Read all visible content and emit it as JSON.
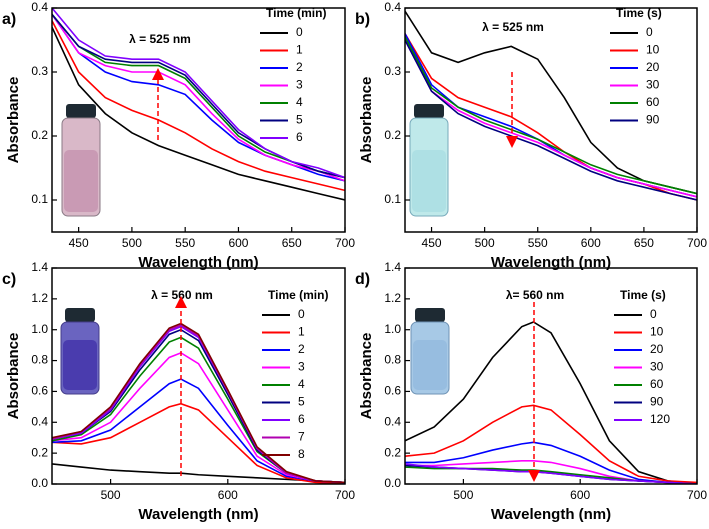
{
  "chart_data": [
    {
      "type": "line",
      "panel": "a)",
      "annotation": "λ = 525 nm",
      "x_label": "Wavelength (nm)",
      "y_label": "Absorbance",
      "legend_title": "Time (min)",
      "xlim": [
        425,
        700
      ],
      "xticks": [
        450,
        500,
        550,
        600,
        650,
        700
      ],
      "ylim": [
        0.05,
        0.4
      ],
      "yticks": [
        0.1,
        0.2,
        0.3,
        0.4
      ],
      "x": [
        425,
        450,
        475,
        500,
        525,
        550,
        575,
        600,
        625,
        650,
        675,
        700
      ],
      "series": [
        {
          "name": "0",
          "color": "#000000",
          "values": [
            0.37,
            0.28,
            0.235,
            0.205,
            0.185,
            0.17,
            0.155,
            0.14,
            0.13,
            0.12,
            0.11,
            0.1
          ]
        },
        {
          "name": "1",
          "color": "#ff0000",
          "values": [
            0.38,
            0.3,
            0.26,
            0.24,
            0.225,
            0.205,
            0.18,
            0.16,
            0.145,
            0.135,
            0.125,
            0.115
          ]
        },
        {
          "name": "2",
          "color": "#0000ff",
          "values": [
            0.39,
            0.33,
            0.3,
            0.285,
            0.28,
            0.265,
            0.225,
            0.19,
            0.17,
            0.155,
            0.14,
            0.13
          ]
        },
        {
          "name": "3",
          "color": "#ff00ff",
          "values": [
            0.39,
            0.33,
            0.31,
            0.3,
            0.3,
            0.28,
            0.235,
            0.195,
            0.17,
            0.155,
            0.145,
            0.13
          ]
        },
        {
          "name": "4",
          "color": "#008000",
          "values": [
            0.39,
            0.34,
            0.315,
            0.31,
            0.31,
            0.29,
            0.245,
            0.2,
            0.175,
            0.16,
            0.145,
            0.135
          ]
        },
        {
          "name": "5",
          "color": "#000080",
          "values": [
            0.39,
            0.34,
            0.32,
            0.315,
            0.315,
            0.295,
            0.25,
            0.205,
            0.18,
            0.16,
            0.145,
            0.135
          ]
        },
        {
          "name": "6",
          "color": "#8000ff",
          "values": [
            0.4,
            0.35,
            0.325,
            0.32,
            0.32,
            0.3,
            0.255,
            0.21,
            0.18,
            0.16,
            0.15,
            0.135
          ]
        }
      ]
    },
    {
      "type": "line",
      "panel": "b)",
      "annotation": "λ = 525 nm",
      "x_label": "Wavelength (nm)",
      "y_label": "Absorbance",
      "legend_title": "Time (s)",
      "xlim": [
        425,
        700
      ],
      "xticks": [
        450,
        500,
        550,
        600,
        650,
        700
      ],
      "ylim": [
        0.05,
        0.4
      ],
      "yticks": [
        0.1,
        0.2,
        0.3,
        0.4
      ],
      "x": [
        425,
        450,
        475,
        500,
        525,
        550,
        575,
        600,
        625,
        650,
        675,
        700
      ],
      "series": [
        {
          "name": "0",
          "color": "#000000",
          "values": [
            0.395,
            0.33,
            0.315,
            0.33,
            0.34,
            0.32,
            0.26,
            0.19,
            0.15,
            0.13,
            0.12,
            0.11
          ]
        },
        {
          "name": "10",
          "color": "#ff0000",
          "values": [
            0.36,
            0.29,
            0.26,
            0.245,
            0.23,
            0.205,
            0.175,
            0.15,
            0.135,
            0.125,
            0.11,
            0.1
          ]
        },
        {
          "name": "20",
          "color": "#0000ff",
          "values": [
            0.36,
            0.28,
            0.245,
            0.23,
            0.215,
            0.195,
            0.17,
            0.15,
            0.135,
            0.125,
            0.115,
            0.105
          ]
        },
        {
          "name": "30",
          "color": "#ff00ff",
          "values": [
            0.35,
            0.27,
            0.24,
            0.22,
            0.205,
            0.19,
            0.17,
            0.15,
            0.135,
            0.125,
            0.115,
            0.105
          ]
        },
        {
          "name": "60",
          "color": "#008000",
          "values": [
            0.355,
            0.275,
            0.245,
            0.225,
            0.21,
            0.195,
            0.175,
            0.155,
            0.14,
            0.13,
            0.12,
            0.11
          ]
        },
        {
          "name": "90",
          "color": "#000080",
          "values": [
            0.35,
            0.27,
            0.235,
            0.215,
            0.2,
            0.185,
            0.165,
            0.145,
            0.13,
            0.12,
            0.11,
            0.1
          ]
        }
      ]
    },
    {
      "type": "line",
      "panel": "c)",
      "annotation": "λ = 560 nm",
      "x_label": "Wavelength (nm)",
      "y_label": "Absorbance",
      "legend_title": "Time (min)",
      "xlim": [
        450,
        700
      ],
      "xticks": [
        500,
        600,
        700
      ],
      "ylim": [
        0,
        1.4
      ],
      "yticks": [
        {
          "value": 0,
          "label": "0.0"
        },
        0.2,
        0.4,
        0.6,
        0.8,
        {
          "value": 1,
          "label": "1.0"
        },
        1.2,
        1.4
      ],
      "x": [
        450,
        475,
        500,
        525,
        550,
        560,
        575,
        600,
        625,
        650,
        675,
        700
      ],
      "series": [
        {
          "name": "0",
          "color": "#000000",
          "values": [
            0.13,
            0.11,
            0.09,
            0.08,
            0.07,
            0.07,
            0.06,
            0.05,
            0.04,
            0.03,
            0.02,
            0.01
          ]
        },
        {
          "name": "1",
          "color": "#ff0000",
          "values": [
            0.27,
            0.26,
            0.3,
            0.4,
            0.5,
            0.52,
            0.48,
            0.3,
            0.12,
            0.04,
            0.01,
            0
          ]
        },
        {
          "name": "2",
          "color": "#0000ff",
          "values": [
            0.27,
            0.28,
            0.35,
            0.5,
            0.65,
            0.68,
            0.62,
            0.38,
            0.15,
            0.05,
            0.02,
            0.01
          ]
        },
        {
          "name": "3",
          "color": "#ff00ff",
          "values": [
            0.28,
            0.3,
            0.4,
            0.62,
            0.82,
            0.85,
            0.78,
            0.48,
            0.18,
            0.06,
            0.02,
            0.01
          ]
        },
        {
          "name": "4",
          "color": "#008000",
          "values": [
            0.28,
            0.32,
            0.45,
            0.7,
            0.92,
            0.95,
            0.88,
            0.55,
            0.21,
            0.07,
            0.02,
            0.01
          ]
        },
        {
          "name": "5",
          "color": "#000080",
          "values": [
            0.29,
            0.33,
            0.47,
            0.74,
            0.97,
            1.0,
            0.93,
            0.58,
            0.22,
            0.07,
            0.02,
            0.01
          ]
        },
        {
          "name": "6",
          "color": "#8000ff",
          "values": [
            0.29,
            0.33,
            0.48,
            0.76,
            0.99,
            1.02,
            0.95,
            0.6,
            0.23,
            0.07,
            0.02,
            0.01
          ]
        },
        {
          "name": "7",
          "color": "#b000b0",
          "values": [
            0.29,
            0.34,
            0.49,
            0.77,
            1.0,
            1.03,
            0.96,
            0.6,
            0.23,
            0.07,
            0.02,
            0.01
          ]
        },
        {
          "name": "8",
          "color": "#800000",
          "values": [
            0.3,
            0.34,
            0.5,
            0.78,
            1.01,
            1.04,
            0.97,
            0.61,
            0.24,
            0.08,
            0.02,
            0.01
          ]
        }
      ]
    },
    {
      "type": "line",
      "panel": "d)",
      "annotation": "λ= 560 nm",
      "x_label": "Wavelength (nm)",
      "y_label": "Absorbance",
      "legend_title": "Time (s)",
      "xlim": [
        450,
        700
      ],
      "xticks": [
        500,
        600,
        700
      ],
      "ylim": [
        0,
        1.4
      ],
      "yticks": [
        {
          "value": 0,
          "label": "0.0"
        },
        0.2,
        0.4,
        0.6,
        0.8,
        {
          "value": 1,
          "label": "1.0"
        },
        1.2,
        1.4
      ],
      "x": [
        450,
        475,
        500,
        525,
        550,
        560,
        575,
        600,
        625,
        650,
        675,
        700
      ],
      "series": [
        {
          "name": "0",
          "color": "#000000",
          "values": [
            0.28,
            0.37,
            0.55,
            0.82,
            1.02,
            1.05,
            0.98,
            0.65,
            0.28,
            0.08,
            0.02,
            0
          ]
        },
        {
          "name": "10",
          "color": "#ff0000",
          "values": [
            0.18,
            0.2,
            0.28,
            0.4,
            0.5,
            0.51,
            0.48,
            0.32,
            0.15,
            0.05,
            0.02,
            0.01
          ]
        },
        {
          "name": "20",
          "color": "#0000ff",
          "values": [
            0.14,
            0.14,
            0.17,
            0.22,
            0.26,
            0.27,
            0.25,
            0.18,
            0.09,
            0.03,
            0.01,
            0
          ]
        },
        {
          "name": "30",
          "color": "#ff00ff",
          "values": [
            0.12,
            0.12,
            0.13,
            0.14,
            0.15,
            0.15,
            0.14,
            0.1,
            0.05,
            0.02,
            0.01,
            0
          ]
        },
        {
          "name": "60",
          "color": "#008000",
          "values": [
            0.11,
            0.1,
            0.1,
            0.1,
            0.09,
            0.09,
            0.08,
            0.06,
            0.04,
            0.02,
            0.01,
            0
          ]
        },
        {
          "name": "90",
          "color": "#000080",
          "values": [
            0.12,
            0.11,
            0.1,
            0.09,
            0.08,
            0.08,
            0.07,
            0.05,
            0.03,
            0.02,
            0.01,
            0
          ]
        },
        {
          "name": "120",
          "color": "#8000ff",
          "values": [
            0.13,
            0.11,
            0.1,
            0.09,
            0.08,
            0.08,
            0.07,
            0.05,
            0.03,
            0.02,
            0.01,
            0
          ]
        }
      ]
    }
  ]
}
